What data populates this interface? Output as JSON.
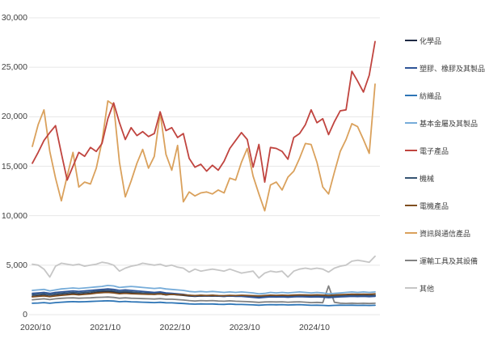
{
  "chart_data": {
    "type": "line",
    "title": "",
    "xlabel": "",
    "ylabel": "",
    "ylim": [
      0,
      30000
    ],
    "months_span": "2020/10 - 2025/09",
    "grid": "horizontal",
    "legend_position": "right",
    "y_ticks": [
      {
        "value": 0,
        "label": "0"
      },
      {
        "value": 5000,
        "label": "5,000"
      },
      {
        "value": 10000,
        "label": "10,000"
      },
      {
        "value": 15000,
        "label": "15,000"
      },
      {
        "value": 20000,
        "label": "20,000"
      },
      {
        "value": 25000,
        "label": "25,000"
      },
      {
        "value": 30000,
        "label": "30,000"
      }
    ],
    "x_ticks": [
      {
        "index": 0,
        "label": "2020/10"
      },
      {
        "index": 12,
        "label": "2021/10"
      },
      {
        "index": 24,
        "label": "2022/10"
      },
      {
        "index": 36,
        "label": "2023/10"
      },
      {
        "index": 48,
        "label": "2024/10"
      }
    ],
    "series": [
      {
        "name": "化學品",
        "slug": "chemicals",
        "color": "#1F2A44",
        "values": [
          1850,
          1900,
          1950,
          1850,
          1950,
          2000,
          2050,
          2100,
          2050,
          2100,
          2150,
          2250,
          2300,
          2350,
          2300,
          2200,
          2250,
          2200,
          2150,
          2100,
          2100,
          2050,
          2100,
          2000,
          2050,
          2000,
          1950,
          1900,
          1850,
          1900,
          1880,
          1900,
          1870,
          1850,
          1900,
          1870,
          1900,
          1880,
          1850,
          1800,
          1850,
          1900,
          1880,
          1900,
          1870,
          1900,
          1920,
          1900,
          1880,
          1900,
          1870,
          1830,
          1870,
          1900,
          1920,
          1950,
          1930,
          1950,
          1920,
          1950
        ]
      },
      {
        "name": "塑膠、橡膠及其製品",
        "slug": "plastics-rubber",
        "color": "#2F5597",
        "values": [
          2150,
          2200,
          2250,
          2150,
          2250,
          2300,
          2350,
          2400,
          2350,
          2400,
          2450,
          2500,
          2550,
          2600,
          2550,
          2450,
          2500,
          2450,
          2400,
          2350,
          2300,
          2250,
          2300,
          2200,
          2150,
          2100,
          2050,
          1950,
          1900,
          1950,
          1900,
          1950,
          1900,
          1850,
          1900,
          1850,
          1850,
          1800,
          1750,
          1700,
          1750,
          1800,
          1780,
          1800,
          1760,
          1800,
          1820,
          1800,
          1780,
          1800,
          1770,
          1720,
          1760,
          1800,
          1820,
          1850,
          1830,
          1850,
          1820,
          1850
        ]
      },
      {
        "name": "紡織品",
        "slug": "textiles",
        "color": "#2E75B6",
        "values": [
          1150,
          1180,
          1220,
          1150,
          1220,
          1260,
          1290,
          1320,
          1290,
          1310,
          1330,
          1360,
          1380,
          1400,
          1370,
          1310,
          1340,
          1300,
          1280,
          1260,
          1240,
          1220,
          1250,
          1200,
          1190,
          1160,
          1130,
          1090,
          1060,
          1090,
          1070,
          1080,
          1050,
          1040,
          1070,
          1040,
          1030,
          1010,
          990,
          960,
          990,
          1010,
          1000,
          1010,
          980,
          1000,
          1010,
          980,
          950,
          960,
          940,
          910,
          940,
          960,
          950,
          960,
          940,
          950,
          930,
          950
        ]
      },
      {
        "name": "基本金屬及其製品",
        "slug": "basic-metals",
        "color": "#76ACD9",
        "values": [
          2450,
          2500,
          2550,
          2400,
          2500,
          2600,
          2650,
          2700,
          2650,
          2700,
          2750,
          2800,
          2850,
          2950,
          2900,
          2750,
          2800,
          2850,
          2800,
          2750,
          2700,
          2650,
          2700,
          2600,
          2550,
          2500,
          2450,
          2350,
          2300,
          2350,
          2300,
          2350,
          2300,
          2250,
          2300,
          2250,
          2300,
          2250,
          2200,
          2100,
          2150,
          2250,
          2200,
          2250,
          2200,
          2250,
          2300,
          2250,
          2200,
          2250,
          2200,
          2100,
          2150,
          2200,
          2250,
          2300,
          2250,
          2300,
          2250,
          2300
        ]
      },
      {
        "name": "電子產品",
        "slug": "electronics",
        "color": "#C0443F",
        "values": [
          15300,
          16400,
          17600,
          18400,
          19100,
          16300,
          13600,
          15000,
          16400,
          16000,
          16900,
          16500,
          17300,
          19800,
          21400,
          19400,
          17700,
          18900,
          18100,
          18500,
          18000,
          18300,
          20500,
          18600,
          18900,
          17900,
          18300,
          15800,
          14900,
          15200,
          14500,
          15100,
          14600,
          15500,
          16800,
          17600,
          18400,
          17700,
          14900,
          17200,
          13400,
          16900,
          16800,
          16500,
          15700,
          17900,
          18300,
          19200,
          20700,
          19400,
          19800,
          18200,
          19500,
          20600,
          20700,
          24600,
          23600,
          22500,
          24200,
          27600
        ]
      },
      {
        "name": "機械",
        "slug": "machinery",
        "color": "#365472",
        "values": [
          2000,
          2050,
          2100,
          2000,
          2100,
          2150,
          2200,
          2250,
          2200,
          2250,
          2300,
          2380,
          2420,
          2450,
          2400,
          2300,
          2350,
          2300,
          2250,
          2200,
          2180,
          2150,
          2200,
          2100,
          2100,
          2050,
          2000,
          1950,
          1900,
          1950,
          1920,
          1950,
          1900,
          1880,
          1920,
          1880,
          1900,
          1870,
          1840,
          1800,
          1840,
          1880,
          1860,
          1880,
          1850,
          1880,
          1900,
          1880,
          1860,
          1880,
          1850,
          1810,
          1850,
          1880,
          1900,
          1930,
          1910,
          1930,
          1900,
          1930
        ]
      },
      {
        "name": "電機產品",
        "slug": "electrical-products",
        "color": "#7F4E20",
        "values": [
          1800,
          1850,
          1900,
          1820,
          1900,
          1950,
          2000,
          2050,
          2000,
          2050,
          2100,
          2180,
          2220,
          2250,
          2200,
          2120,
          2160,
          2120,
          2100,
          2080,
          2060,
          2050,
          2100,
          2020,
          2050,
          2020,
          2000,
          1960,
          1930,
          1960,
          1940,
          1960,
          1930,
          1920,
          1950,
          1930,
          1960,
          1940,
          1920,
          1890,
          1930,
          1970,
          1950,
          1970,
          1950,
          1980,
          2000,
          1990,
          1980,
          2000,
          1980,
          1950,
          1990,
          2020,
          2040,
          2070,
          2060,
          2080,
          2060,
          2100
        ]
      },
      {
        "name": "資訊與通信產品",
        "slug": "ict-products",
        "color": "#DAA15C",
        "values": [
          17000,
          19200,
          20700,
          16500,
          13800,
          11500,
          14000,
          16400,
          12900,
          13400,
          13200,
          14800,
          17500,
          21600,
          21200,
          15400,
          11900,
          13500,
          15300,
          16700,
          14800,
          16000,
          20400,
          16200,
          14600,
          17100,
          11400,
          12400,
          12000,
          12300,
          12400,
          12200,
          12600,
          12300,
          13800,
          13600,
          15400,
          16800,
          14000,
          12200,
          10500,
          13100,
          13400,
          12600,
          13900,
          14500,
          15800,
          17300,
          17200,
          15400,
          12900,
          12200,
          14400,
          16500,
          17700,
          19300,
          19000,
          17700,
          16300,
          23300
        ]
      },
      {
        "name": "運輸工具及其設備",
        "slug": "transport-equipment",
        "color": "#828282",
        "values": [
          1500,
          1550,
          1600,
          1520,
          1600,
          1650,
          1680,
          1700,
          1660,
          1680,
          1700,
          1740,
          1760,
          1780,
          1740,
          1660,
          1700,
          1660,
          1640,
          1620,
          1600,
          1580,
          1620,
          1560,
          1560,
          1520,
          1480,
          1420,
          1380,
          1420,
          1400,
          1420,
          1380,
          1360,
          1400,
          1360,
          1340,
          1320,
          1280,
          1240,
          1280,
          1300,
          1280,
          1300,
          1260,
          1280,
          1300,
          1260,
          1220,
          1240,
          1210,
          2900,
          1250,
          1160,
          1140,
          1160,
          1140,
          1150,
          1130,
          1150
        ]
      },
      {
        "name": "其他",
        "slug": "others",
        "color": "#C6C6C6",
        "values": [
          5100,
          5000,
          4600,
          3800,
          4900,
          5200,
          5100,
          5000,
          5100,
          4900,
          5000,
          5100,
          5300,
          5200,
          5000,
          4400,
          4700,
          4900,
          5000,
          5200,
          5100,
          5000,
          5100,
          4900,
          5000,
          4800,
          4700,
          4300,
          4600,
          4400,
          4500,
          4600,
          4500,
          4400,
          4600,
          4400,
          4200,
          4300,
          4400,
          3700,
          4200,
          4400,
          4300,
          4400,
          3800,
          4400,
          4600,
          4700,
          4600,
          4700,
          4600,
          4300,
          4700,
          4900,
          5000,
          5400,
          5500,
          5400,
          5300,
          5900
        ]
      }
    ]
  },
  "colors": {
    "background": "#FFFFFF",
    "gridline": "#E7E7E7",
    "axis_text": "#404040"
  }
}
